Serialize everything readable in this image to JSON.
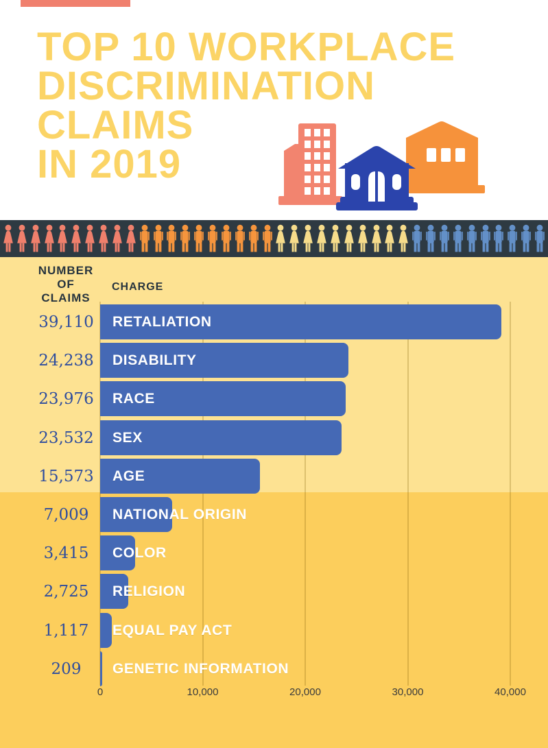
{
  "header": {
    "title_lines": [
      "TOP 10 WORKPLACE",
      "DISCRIMINATION",
      "CLAIMS",
      "IN 2019"
    ],
    "title_color": "#FBD466",
    "accent_bar_color": "#F0806E"
  },
  "illustration": {
    "buildings": [
      {
        "name": "office-building-icon",
        "color": "#F2846F"
      },
      {
        "name": "barn-building-icon",
        "color": "#F6923B"
      },
      {
        "name": "house-icon",
        "color": "#2B44AC"
      }
    ]
  },
  "people_band": {
    "background": "#2E3A42",
    "groups": [
      {
        "icon": "female-person-icon",
        "color": "#F0806C",
        "count": 10
      },
      {
        "icon": "male-person-icon",
        "color": "#F6953D",
        "count": 10
      },
      {
        "icon": "female-person-icon",
        "color": "#F6DC8B",
        "count": 10
      },
      {
        "icon": "male-person-icon",
        "color": "#6390C8",
        "count": 10
      }
    ]
  },
  "chart": {
    "col_header_left": "NUMBER\nOF\nCLAIMS",
    "col_header_right": "CHARGE",
    "bar_color": "#4569B5",
    "value_text_color": "#2E4D9E",
    "background_top": "#FDE292",
    "background_bottom": "#FCCE5C"
  },
  "chart_data": {
    "type": "bar",
    "orientation": "horizontal",
    "title": "Top 10 Workplace Discrimination Claims in 2019",
    "categories": [
      "RETALIATION",
      "DISABILITY",
      "RACE",
      "SEX",
      "AGE",
      "NATIONAL ORIGIN",
      "COLOR",
      "RELIGION",
      "EQUAL PAY ACT",
      "GENETIC INFORMATION"
    ],
    "values": [
      39110,
      24238,
      23976,
      23532,
      15573,
      7009,
      3415,
      2725,
      1117,
      209
    ],
    "value_labels": [
      "39,110",
      "24,238",
      "23,976",
      "23,532",
      "15,573",
      "7,009",
      "3,415",
      "2,725",
      "1,117",
      "209"
    ],
    "xlabel": "",
    "ylabel": "",
    "xlim": [
      0,
      43000
    ],
    "x_tick_values": [
      0,
      10000,
      20000,
      30000,
      40000
    ],
    "x_tick_labels": [
      "0",
      "10,000",
      "20,000",
      "30,000",
      "40,000"
    ],
    "grid": true,
    "legend": false
  }
}
